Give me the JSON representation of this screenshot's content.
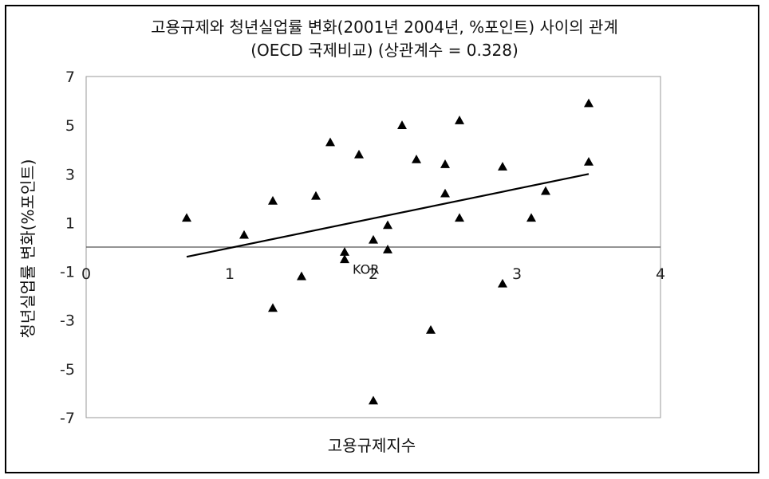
{
  "chart_data": {
    "type": "scatter",
    "title": "고용규제와 청년실업률 변화(2001년 2004년, %포인트) 사이의 관계",
    "subtitle": "(OECD 국제비교) (상관계수 = 0.328)",
    "xlabel": "고용규제지수",
    "ylabel": "청년실업률 변화(%포인트)",
    "xlim": [
      0,
      4
    ],
    "ylim": [
      -7,
      7
    ],
    "x_ticks": [
      "0",
      "1",
      "2",
      "3",
      "4"
    ],
    "y_ticks": [
      "7",
      "5",
      "3",
      "1",
      "-1",
      "-3",
      "-5",
      "-7"
    ],
    "marker": "triangle",
    "marker_color": "#000000",
    "points": [
      {
        "x": 0.7,
        "y": 1.2
      },
      {
        "x": 1.1,
        "y": 0.5
      },
      {
        "x": 1.3,
        "y": 1.9
      },
      {
        "x": 1.3,
        "y": -2.5
      },
      {
        "x": 1.5,
        "y": -1.2
      },
      {
        "x": 1.6,
        "y": 2.1
      },
      {
        "x": 1.7,
        "y": 4.3
      },
      {
        "x": 1.8,
        "y": -0.2
      },
      {
        "x": 1.8,
        "y": -0.5
      },
      {
        "x": 1.9,
        "y": 3.8
      },
      {
        "x": 2.0,
        "y": 0.3
      },
      {
        "x": 2.0,
        "y": -6.3
      },
      {
        "x": 2.1,
        "y": 0.9
      },
      {
        "x": 2.1,
        "y": -0.1
      },
      {
        "x": 2.2,
        "y": 5.0
      },
      {
        "x": 2.3,
        "y": 3.6
      },
      {
        "x": 2.4,
        "y": -3.4
      },
      {
        "x": 2.5,
        "y": 3.4
      },
      {
        "x": 2.5,
        "y": 2.2
      },
      {
        "x": 2.6,
        "y": 5.2
      },
      {
        "x": 2.6,
        "y": 1.2
      },
      {
        "x": 2.9,
        "y": 3.3
      },
      {
        "x": 2.9,
        "y": -1.5
      },
      {
        "x": 3.1,
        "y": 1.2
      },
      {
        "x": 3.2,
        "y": 2.3
      },
      {
        "x": 3.5,
        "y": 5.9
      },
      {
        "x": 3.5,
        "y": 3.5
      }
    ],
    "trendline": {
      "x": [
        0.7,
        3.5
      ],
      "y": [
        -0.4,
        3.0
      ]
    },
    "annotations": [
      {
        "text": "KOR",
        "x": 1.8,
        "y": -0.5
      }
    ],
    "grid": false,
    "legend": "none"
  }
}
